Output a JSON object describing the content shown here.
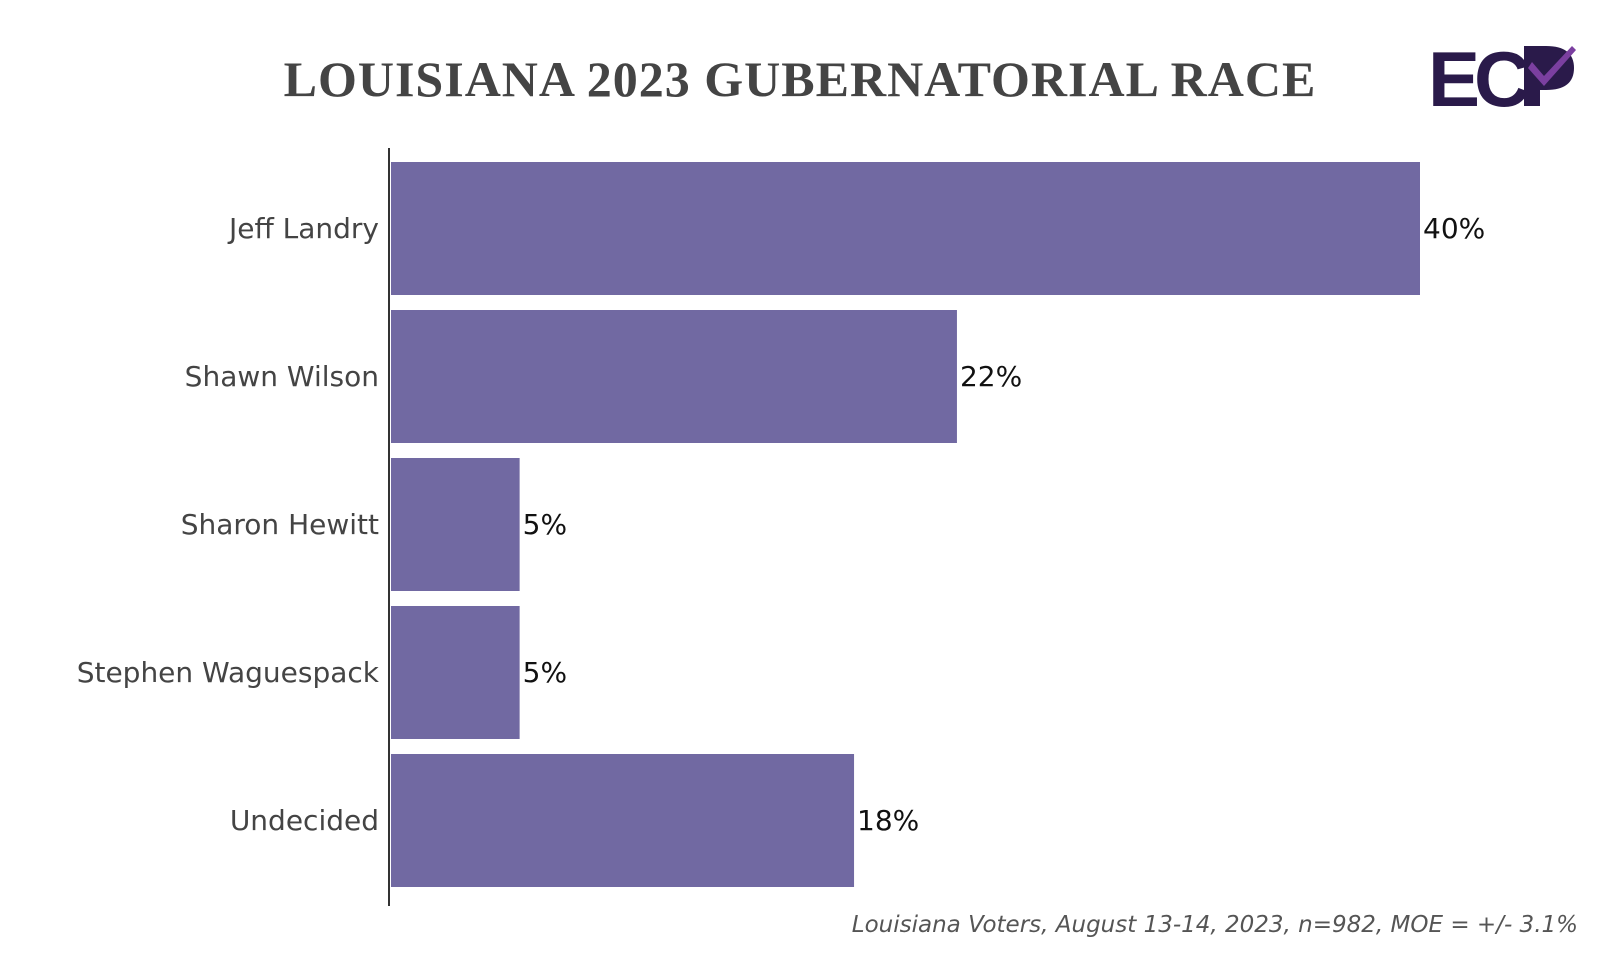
{
  "chart_data": {
    "type": "bar",
    "orientation": "horizontal",
    "title": "LOUISIANA 2023 GUBERNATORIAL RACE",
    "categories": [
      "Jeff Landry",
      "Shawn Wilson",
      "Sharon Hewitt",
      "Stephen Waguespack",
      "Undecided"
    ],
    "values": [
      40,
      22,
      5,
      5,
      18
    ],
    "value_labels": [
      "40%",
      "22%",
      "5%",
      "5%",
      "18%"
    ],
    "value_unit": "%",
    "xlim": [
      0,
      40
    ],
    "grid": false,
    "bar_color": "#7169a2",
    "footnote": "Louisiana Voters, August 13-14, 2023, n=982, MOE = +/- 3.1%"
  },
  "logo": {
    "text": "ECP",
    "primary_color": "#2a1a4a",
    "accent_color": "#7b3fa0"
  }
}
